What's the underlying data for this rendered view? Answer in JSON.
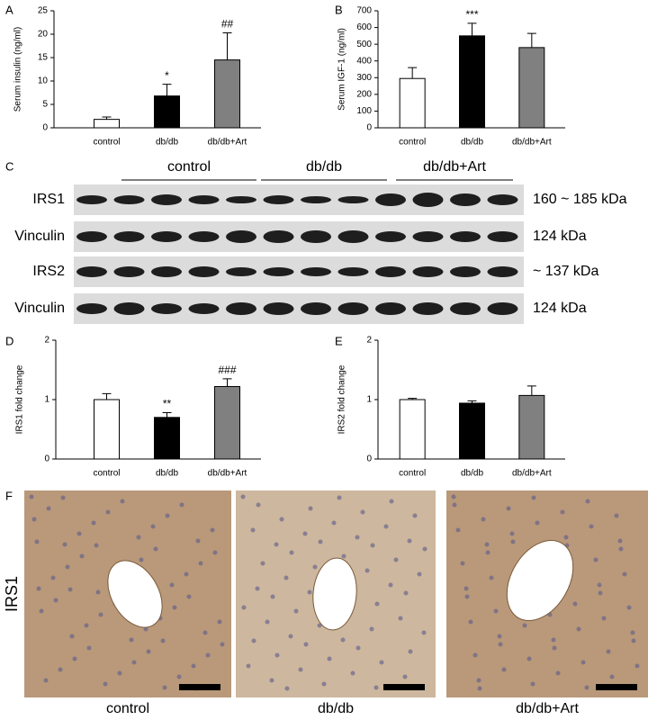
{
  "chart_data": [
    {
      "type": "bar",
      "panel_label": "A",
      "ylabel": "Serum insulin (ng/ml)",
      "categories": [
        "control",
        "db/db",
        "db/db+Art"
      ],
      "values": [
        1.8,
        6.8,
        14.5
      ],
      "errors": [
        0.5,
        2.5,
        5.8
      ],
      "annotations": [
        null,
        "*",
        "##"
      ],
      "colors": [
        "#ffffff",
        "#000000",
        "#808080"
      ],
      "ylim": [
        0,
        25
      ],
      "yticks": [
        0,
        5,
        10,
        15,
        20,
        25
      ]
    },
    {
      "type": "bar",
      "panel_label": "B",
      "ylabel": "Serum IGF-1 (ng/ml)",
      "categories": [
        "control",
        "db/db",
        "db/db+Art"
      ],
      "values": [
        295,
        550,
        480
      ],
      "errors": [
        65,
        75,
        85
      ],
      "annotations": [
        null,
        "***",
        null
      ],
      "colors": [
        "#ffffff",
        "#000000",
        "#808080"
      ],
      "ylim": [
        0,
        700
      ],
      "yticks": [
        0,
        100,
        200,
        300,
        400,
        500,
        600,
        700
      ]
    },
    {
      "type": "bar",
      "panel_label": "D",
      "ylabel": "IRS1 fold change",
      "categories": [
        "control",
        "db/db",
        "db/db+Art"
      ],
      "values": [
        1.0,
        0.7,
        1.22
      ],
      "errors": [
        0.1,
        0.08,
        0.13
      ],
      "annotations": [
        null,
        "**",
        "###"
      ],
      "colors": [
        "#ffffff",
        "#000000",
        "#808080"
      ],
      "ylim": [
        0,
        2
      ],
      "yticks": [
        0,
        1,
        2
      ]
    },
    {
      "type": "bar",
      "panel_label": "E",
      "ylabel": "IRS2 fold change",
      "categories": [
        "control",
        "db/db",
        "db/db+Art"
      ],
      "values": [
        1.0,
        0.94,
        1.07
      ],
      "errors": [
        0.02,
        0.04,
        0.16
      ],
      "annotations": [
        null,
        null,
        null
      ],
      "colors": [
        "#ffffff",
        "#000000",
        "#808080"
      ],
      "ylim": [
        0,
        2
      ],
      "yticks": [
        0,
        1,
        2
      ]
    }
  ],
  "blot": {
    "panel_label": "C",
    "groups": [
      "control",
      "db/db",
      "db/db+Art"
    ],
    "rows": [
      {
        "label": "IRS1",
        "size": "160 ~ 185 kDa"
      },
      {
        "label": "Vinculin",
        "size": "124 kDa"
      },
      {
        "label": "IRS2",
        "size": "~ 137 kDa"
      },
      {
        "label": "Vinculin",
        "size": "124 kDa"
      }
    ]
  },
  "histology": {
    "panel_label": "F",
    "stain": "IRS1",
    "groups": [
      "control",
      "db/db",
      "db/db+Art"
    ]
  }
}
